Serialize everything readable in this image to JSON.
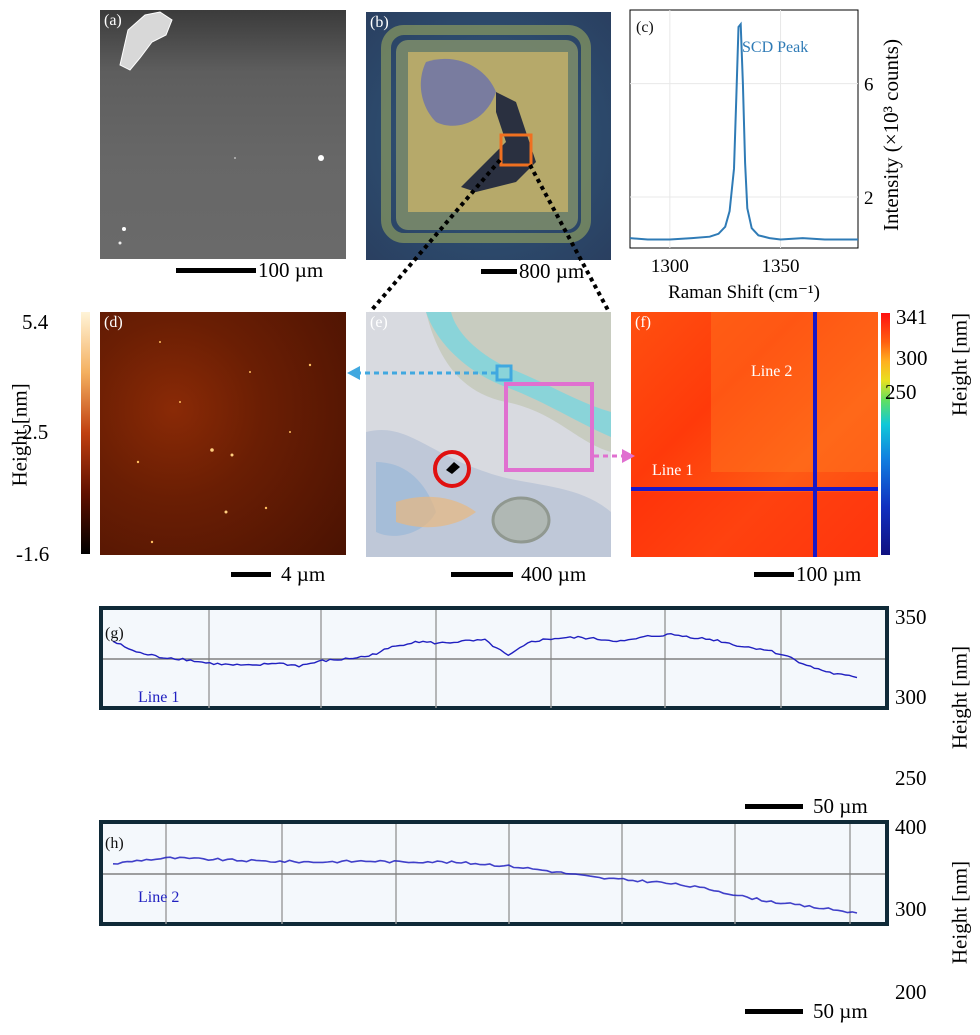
{
  "panels": {
    "a": {
      "label": "(a)",
      "scalebar": "100 µm"
    },
    "b": {
      "label": "(b)",
      "scalebar": "800 µm"
    },
    "c": {
      "label": "(c)",
      "annotation": "SCD Peak",
      "xlabel": "Raman Shift (cm⁻¹)",
      "ylabel": "Intensity (×10³ counts)",
      "xticks": [
        "1300",
        "1350"
      ],
      "yticks": [
        "6",
        "2"
      ]
    },
    "d": {
      "label": "(d)",
      "scalebar": "4 µm",
      "colorbar_label": "Height [nm]",
      "colorbar_ticks": [
        "5.4",
        "2.5",
        "-1.6"
      ]
    },
    "e": {
      "label": "(e)",
      "scalebar": "400 µm"
    },
    "f": {
      "label": "(f)",
      "scalebar": "100 µm",
      "line1": "Line 1",
      "line2": "Line 2",
      "colorbar_label": "Height [nm]",
      "colorbar_ticks": [
        "341",
        "300",
        "250"
      ]
    },
    "g": {
      "label": "(g)",
      "line": "Line 1",
      "scalebar": "50 µm",
      "ylabel": "Height [nm]",
      "yticks": [
        "350",
        "300",
        "250"
      ]
    },
    "h": {
      "label": "(h)",
      "line": "Line 2",
      "scalebar": "50 µm",
      "ylabel": "Height [nm]",
      "yticks": [
        "400",
        "300",
        "200"
      ]
    }
  },
  "colors": {
    "raman_line": "#2f7bb6",
    "profile_line": "#2020c0",
    "orange_box": "#f07020",
    "blue_box": "#40a8e0",
    "pink_box": "#e070d0",
    "red_circle": "#e01010",
    "line_marker": "#1818c8",
    "panel_border": "#102a38"
  },
  "chart_data": [
    {
      "type": "line",
      "panel": "(c)",
      "title": "",
      "annotation": "SCD Peak",
      "xlabel": "Raman Shift (cm⁻¹)",
      "ylabel": "Intensity (×10³ counts)",
      "xlim": [
        1282,
        1385
      ],
      "ylim": [
        0.2,
        8.6
      ],
      "x": [
        1282,
        1290,
        1300,
        1310,
        1318,
        1322,
        1325,
        1327,
        1329,
        1330,
        1331,
        1332,
        1333,
        1334,
        1335,
        1337,
        1340,
        1345,
        1350,
        1360,
        1370,
        1385
      ],
      "y": [
        0.55,
        0.5,
        0.5,
        0.55,
        0.6,
        0.7,
        0.95,
        1.5,
        3.0,
        5.5,
        8.0,
        8.1,
        6.0,
        3.2,
        1.6,
        0.9,
        0.65,
        0.55,
        0.5,
        0.55,
        0.5,
        0.5
      ]
    },
    {
      "type": "line",
      "panel": "(g)",
      "series": [
        {
          "name": "Line 1",
          "values": [
            318,
            307,
            302,
            300,
            296,
            294,
            293,
            296,
            293,
            298,
            300,
            303,
            312,
            318,
            316,
            318,
            319,
            303,
            318,
            321,
            322,
            320,
            318,
            323,
            325,
            322,
            319,
            313,
            310,
            303,
            292,
            285,
            281
          ]
        }
      ],
      "x_step_um": 10,
      "ylabel": "Height [nm]",
      "ylim": [
        250,
        350
      ]
    },
    {
      "type": "line",
      "panel": "(h)",
      "series": [
        {
          "name": "Line 2",
          "values": [
            320,
            328,
            332,
            330,
            328,
            326,
            325,
            324,
            325,
            326,
            324,
            325,
            323,
            320,
            315,
            308,
            300,
            292,
            288,
            284,
            277,
            268,
            255,
            245,
            237,
            230,
            222
          ]
        }
      ],
      "x_step_um": 12,
      "ylabel": "Height [nm]",
      "ylim": [
        200,
        400
      ]
    }
  ]
}
